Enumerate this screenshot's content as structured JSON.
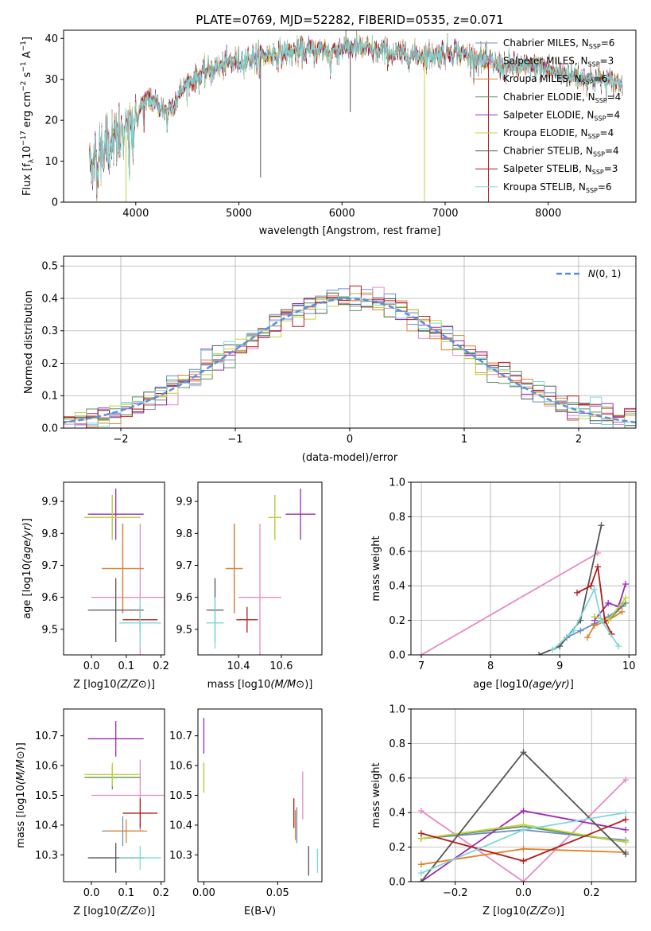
{
  "colors": {
    "chabrier_miles": "#6b8cc7",
    "salpeter_miles": "#e58ac6",
    "kroupa_miles": "#e0822c",
    "chabrier_elodie": "#5f8f5f",
    "salpeter_elodie": "#9a2bb0",
    "kroupa_elodie": "#c4d43a",
    "chabrier_stelib": "#555555",
    "salpeter_stelib": "#b01d1d",
    "kroupa_stelib": "#7fd8d8"
  },
  "chart_data": [
    {
      "type": "line",
      "title": "PLATE=0769, MJD=52282, FIBERID=0535, z=0.071",
      "xlabel": "wavelength [Angstrom, rest frame]",
      "ylabel": "Flux [f_λ10^-17 erg cm^-2 s^-1 A^-1]",
      "xlim": [
        3300,
        8850
      ],
      "ylim": [
        0,
        42
      ],
      "xticks": [
        4000,
        5000,
        6000,
        7000,
        8000
      ],
      "yticks": [
        0,
        10,
        20,
        30,
        40
      ],
      "legend_position": "top-right",
      "grid": false,
      "spectrum_continuum": {
        "x": [
          3550,
          3700,
          3800,
          3950,
          4050,
          4150,
          4300,
          4500,
          4700,
          4900,
          5100,
          5300,
          5600,
          5900,
          6100,
          6300,
          6600,
          6900,
          7100,
          7300,
          7600,
          7900,
          8200,
          8500,
          8700
        ],
        "y": [
          9,
          13,
          15,
          17,
          23,
          25,
          22,
          29,
          32,
          34,
          35,
          36,
          37,
          37,
          38,
          37,
          36,
          36,
          37,
          35,
          33,
          33,
          31,
          30,
          29
        ]
      },
      "series": [
        {
          "name": "Chabrier MILES",
          "nssp": "6"
        },
        {
          "name": "Salpeter MILES",
          "nssp": "3"
        },
        {
          "name": "Kroupa MILES",
          "nssp": "6"
        },
        {
          "name": "Chabrier ELODIE",
          "nssp": "4"
        },
        {
          "name": "Salpeter ELODIE",
          "nssp": "4"
        },
        {
          "name": "Kroupa ELODIE",
          "nssp": "4"
        },
        {
          "name": "Chabrier STELIB",
          "nssp": "4"
        },
        {
          "name": "Salpeter STELIB",
          "nssp": "3"
        },
        {
          "name": "Kroupa STELIB",
          "nssp": "6"
        }
      ]
    },
    {
      "type": "histogram",
      "xlabel": "(data-model)/error",
      "ylabel": "Normed distribution",
      "xlim": [
        -2.5,
        2.5
      ],
      "ylim": [
        0,
        0.53
      ],
      "xticks": [
        -2,
        -1,
        0,
        1,
        2
      ],
      "yticks": [
        0.0,
        0.1,
        0.2,
        0.3,
        0.4,
        0.5
      ],
      "grid": true,
      "reference_curve": "N(0,1)",
      "legend": "top-right"
    },
    {
      "type": "scatter",
      "xlabel": "Z [log10(Z/Z⊙)]",
      "ylabel": "age [log10(age/yr)]",
      "xlim": [
        -0.08,
        0.21
      ],
      "ylim": [
        9.42,
        9.96
      ],
      "xticks": [
        0.0,
        0.1,
        0.2
      ],
      "yticks": [
        9.5,
        9.6,
        9.7,
        9.8,
        9.9
      ],
      "points": [
        {
          "x": 0.09,
          "xerr": 0.06,
          "y": 9.69,
          "yerr": 0.14
        },
        {
          "x": 0.14,
          "xerr": 0.14,
          "y": 9.6,
          "yerr": 0.23
        },
        {
          "x": 0.09,
          "xerr": 0.06,
          "y": 9.69,
          "yerr": 0.14
        },
        {
          "x": 0.06,
          "xerr": 0.08,
          "y": 9.85,
          "yerr": 0.07
        },
        {
          "x": 0.07,
          "xerr": 0.08,
          "y": 9.86,
          "yerr": 0.08
        },
        {
          "x": 0.06,
          "xerr": 0.08,
          "y": 9.85,
          "yerr": 0.07
        },
        {
          "x": 0.07,
          "xerr": 0.08,
          "y": 9.56,
          "yerr": 0.1
        },
        {
          "x": 0.14,
          "xerr": 0.05,
          "y": 9.53,
          "yerr": 0.04
        },
        {
          "x": 0.14,
          "xerr": 0.06,
          "y": 9.52,
          "yerr": 0.08
        }
      ]
    },
    {
      "type": "scatter",
      "xlabel": "mass [log10(M/M⊙)]",
      "xlim": [
        10.21,
        10.79
      ],
      "ylim": [
        9.42,
        9.96
      ],
      "xticks": [
        10.4,
        10.6
      ],
      "yticks": [
        9.5,
        9.6,
        9.7,
        9.8,
        9.9
      ],
      "points": [
        {
          "x": 10.38,
          "xerr": 0.04,
          "y": 9.69,
          "yerr": 0.14
        },
        {
          "x": 10.5,
          "xerr": 0.1,
          "y": 9.6,
          "yerr": 0.23
        },
        {
          "x": 10.38,
          "xerr": 0.04,
          "y": 9.69,
          "yerr": 0.14
        },
        {
          "x": 10.57,
          "xerr": 0.03,
          "y": 9.85,
          "yerr": 0.07
        },
        {
          "x": 10.69,
          "xerr": 0.07,
          "y": 9.86,
          "yerr": 0.08
        },
        {
          "x": 10.57,
          "xerr": 0.03,
          "y": 9.85,
          "yerr": 0.07
        },
        {
          "x": 10.29,
          "xerr": 0.04,
          "y": 9.56,
          "yerr": 0.1
        },
        {
          "x": 10.44,
          "xerr": 0.05,
          "y": 9.53,
          "yerr": 0.04
        },
        {
          "x": 10.29,
          "xerr": 0.04,
          "y": 9.52,
          "yerr": 0.08
        }
      ]
    },
    {
      "type": "line",
      "xlabel": "age [log10(age/yr)]",
      "ylabel": "mass weight",
      "xlim": [
        6.85,
        10.1
      ],
      "ylim": [
        0,
        1.0
      ],
      "xticks": [
        7,
        8,
        9,
        10
      ],
      "yticks": [
        0.0,
        0.2,
        0.4,
        0.6,
        0.8,
        1.0
      ],
      "grid": true,
      "series": [
        {
          "x": [
            9.1,
            9.3,
            9.5,
            9.7,
            9.9
          ],
          "y": [
            0.1,
            0.14,
            0.18,
            0.22,
            0.28
          ]
        },
        {
          "x": [
            7.0,
            9.55
          ],
          "y": [
            0.0,
            0.59
          ]
        },
        {
          "x": [
            9.4,
            9.5,
            9.7,
            9.9
          ],
          "y": [
            0.1,
            0.17,
            0.2,
            0.25
          ]
        },
        {
          "x": [
            9.5,
            9.7,
            9.95
          ],
          "y": [
            0.22,
            0.2,
            0.3
          ]
        },
        {
          "x": [
            9.5,
            9.7,
            9.85,
            9.95
          ],
          "y": [
            0.2,
            0.3,
            0.28,
            0.41
          ]
        },
        {
          "x": [
            9.5,
            9.7,
            9.95
          ],
          "y": [
            0.22,
            0.2,
            0.33
          ]
        },
        {
          "x": [
            8.7,
            9.0,
            9.3,
            9.6
          ],
          "y": [
            0.0,
            0.05,
            0.2,
            0.75
          ]
        },
        {
          "x": [
            9.25,
            9.45,
            9.55,
            9.65,
            9.75
          ],
          "y": [
            0.36,
            0.4,
            0.51,
            0.2,
            0.12
          ]
        },
        {
          "x": [
            8.9,
            9.2,
            9.5,
            9.6,
            9.85
          ],
          "y": [
            0.03,
            0.14,
            0.38,
            0.2,
            0.05
          ]
        }
      ]
    },
    {
      "type": "scatter",
      "xlabel": "Z [log10(Z/Z⊙)]",
      "ylabel": "mass [log10(M/M⊙)]",
      "xlim": [
        -0.08,
        0.21
      ],
      "ylim": [
        10.21,
        10.79
      ],
      "xticks": [
        0.0,
        0.1,
        0.2
      ],
      "yticks": [
        10.3,
        10.4,
        10.5,
        10.6,
        10.7
      ],
      "points": [
        {
          "x": 0.09,
          "xerr": 0.06,
          "y": 10.38,
          "yerr": 0.05
        },
        {
          "x": 0.14,
          "xerr": 0.14,
          "y": 10.5,
          "yerr": 0.12
        },
        {
          "x": 0.1,
          "xerr": 0.06,
          "y": 10.38,
          "yerr": 0.04
        },
        {
          "x": 0.06,
          "xerr": 0.08,
          "y": 10.56,
          "yerr": 0.04
        },
        {
          "x": 0.07,
          "xerr": 0.08,
          "y": 10.69,
          "yerr": 0.06
        },
        {
          "x": 0.06,
          "xerr": 0.08,
          "y": 10.57,
          "yerr": 0.04
        },
        {
          "x": 0.07,
          "xerr": 0.08,
          "y": 10.29,
          "yerr": 0.05
        },
        {
          "x": 0.14,
          "xerr": 0.05,
          "y": 10.44,
          "yerr": 0.05
        },
        {
          "x": 0.14,
          "xerr": 0.06,
          "y": 10.29,
          "yerr": 0.04
        }
      ]
    },
    {
      "type": "scatter",
      "xlabel": "E(B-V)",
      "xlim": [
        -0.004,
        0.08
      ],
      "ylim": [
        10.21,
        10.79
      ],
      "xticks": [
        0.0,
        0.05
      ],
      "yticks": [
        10.3,
        10.4,
        10.5,
        10.6,
        10.7
      ],
      "points": [
        {
          "x": 0.063,
          "y": 10.4,
          "yerr": 0.06
        },
        {
          "x": 0.067,
          "y": 10.5,
          "yerr": 0.08
        },
        {
          "x": 0.062,
          "y": 10.4,
          "yerr": 0.05
        },
        {
          "x": 0.0,
          "y": 10.56,
          "yerr": 0.05
        },
        {
          "x": 0.0,
          "y": 10.7,
          "yerr": 0.06
        },
        {
          "x": 0.0,
          "y": 10.56,
          "yerr": 0.05
        },
        {
          "x": 0.071,
          "y": 10.28,
          "yerr": 0.05
        },
        {
          "x": 0.061,
          "y": 10.44,
          "yerr": 0.05
        },
        {
          "x": 0.077,
          "y": 10.28,
          "yerr": 0.04
        }
      ]
    },
    {
      "type": "line",
      "xlabel": "Z [log10(Z/Z⊙)]",
      "ylabel": "mass weight",
      "xlim": [
        -0.33,
        0.33
      ],
      "ylim": [
        0,
        1.0
      ],
      "xticks": [
        -0.2,
        0.0,
        0.2
      ],
      "yticks": [
        0.0,
        0.2,
        0.4,
        0.6,
        0.8,
        1.0
      ],
      "grid": true,
      "series": [
        {
          "x": [
            -0.3,
            0.0,
            0.3
          ],
          "y": [
            0.25,
            0.3,
            0.24
          ]
        },
        {
          "x": [
            -0.3,
            0.0,
            0.3
          ],
          "y": [
            0.41,
            0.0,
            0.59
          ]
        },
        {
          "x": [
            -0.3,
            0.0,
            0.3
          ],
          "y": [
            0.1,
            0.19,
            0.17
          ]
        },
        {
          "x": [
            -0.3,
            0.0,
            0.3
          ],
          "y": [
            0.25,
            0.32,
            0.23
          ]
        },
        {
          "x": [
            -0.3,
            0.0,
            0.3
          ],
          "y": [
            0.0,
            0.41,
            0.3
          ]
        },
        {
          "x": [
            -0.3,
            0.0,
            0.3
          ],
          "y": [
            0.25,
            0.33,
            0.23
          ]
        },
        {
          "x": [
            -0.3,
            0.0,
            0.3
          ],
          "y": [
            0.0,
            0.75,
            0.16
          ]
        },
        {
          "x": [
            -0.3,
            0.0,
            0.3
          ],
          "y": [
            0.28,
            0.12,
            0.36
          ]
        },
        {
          "x": [
            -0.3,
            0.0,
            0.3
          ],
          "y": [
            0.05,
            0.3,
            0.4
          ]
        }
      ]
    }
  ],
  "labels": {
    "title": "PLATE=0769, MJD=52282, FIBERID=0535, z=0.071",
    "wavelength": "wavelength [Angstrom, rest frame]",
    "flux_prefix": "Flux [f",
    "flux_mid": "10",
    "flux_units": " erg cm",
    "flux_tail": " s",
    "flux_end": " A",
    "resid": "(data-model)/error",
    "normed": "Normed distribution",
    "normal_label": "(0, 1)",
    "normal_sym": "N",
    "ssp_label": ", N",
    "ssp_sub": "SSP"
  }
}
